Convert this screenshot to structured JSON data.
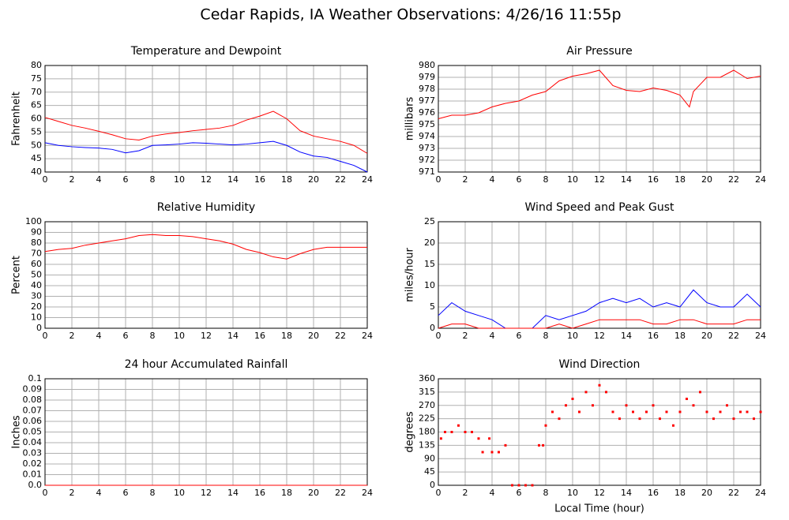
{
  "title": "Cedar Rapids, IA Weather Observations: 4/26/16 11:55p",
  "chart_data": [
    {
      "type": "line",
      "title": "Temperature and Dewpoint",
      "ylabel": "Fahrenheit",
      "x": [
        0,
        1,
        2,
        3,
        4,
        5,
        6,
        7,
        8,
        9,
        10,
        11,
        12,
        13,
        14,
        15,
        16,
        17,
        18,
        19,
        20,
        21,
        22,
        23,
        24
      ],
      "series": [
        {
          "color": "#ff0000",
          "values": [
            60.5,
            59,
            57.5,
            56.5,
            55.3,
            54,
            52.5,
            52,
            53.5,
            54.3,
            54.8,
            55.5,
            56,
            56.5,
            57.5,
            59.5,
            61,
            62.8,
            60,
            55.5,
            53.5,
            52.5,
            51.5,
            50,
            47
          ]
        },
        {
          "color": "#0000ff",
          "values": [
            51,
            50,
            49.5,
            49.2,
            49,
            48.5,
            47.2,
            48,
            50,
            50.2,
            50.5,
            51,
            50.8,
            50.5,
            50.2,
            50.5,
            51,
            51.5,
            50,
            47.5,
            46,
            45.5,
            44,
            42.5,
            40
          ]
        }
      ],
      "xlim": [
        0,
        24
      ],
      "xticks": [
        0,
        2,
        4,
        6,
        8,
        10,
        12,
        14,
        16,
        18,
        20,
        22,
        24
      ],
      "ylim": [
        40,
        80
      ],
      "yticks": [
        40,
        45,
        50,
        55,
        60,
        65,
        70,
        75,
        80
      ],
      "grid": true
    },
    {
      "type": "line",
      "title": "Air Pressure",
      "ylabel": "millibars",
      "x": [
        0,
        1,
        2,
        3,
        4,
        5,
        6,
        7,
        8,
        9,
        10,
        11,
        12,
        13,
        14,
        15,
        16,
        17,
        18,
        18.7,
        19,
        20,
        21,
        22,
        23,
        24
      ],
      "series": [
        {
          "color": "#ff0000",
          "values": [
            975.5,
            975.8,
            975.8,
            976,
            976.5,
            976.8,
            977,
            977.5,
            977.8,
            978.7,
            979.1,
            979.3,
            979.6,
            978.3,
            977.9,
            977.8,
            978.1,
            977.9,
            977.5,
            976.5,
            977.8,
            979,
            979,
            979.6,
            978.9,
            979.1
          ]
        }
      ],
      "xlim": [
        0,
        24
      ],
      "xticks": [
        0,
        2,
        4,
        6,
        8,
        10,
        12,
        14,
        16,
        18,
        20,
        22,
        24
      ],
      "ylim": [
        971,
        980
      ],
      "yticks": [
        971,
        972,
        973,
        974,
        975,
        976,
        977,
        978,
        979,
        980
      ],
      "grid": true
    },
    {
      "type": "line",
      "title": "Relative Humidity",
      "ylabel": "Percent",
      "x": [
        0,
        1,
        2,
        3,
        4,
        5,
        6,
        7,
        8,
        9,
        10,
        11,
        12,
        13,
        14,
        15,
        16,
        17,
        18,
        19,
        20,
        21,
        22,
        23,
        24
      ],
      "series": [
        {
          "color": "#ff0000",
          "values": [
            72,
            74,
            75,
            78,
            80,
            82,
            84,
            87,
            88,
            87,
            87,
            86,
            84,
            82,
            79,
            74,
            71,
            67,
            65,
            70,
            74,
            76,
            76,
            76,
            76
          ]
        }
      ],
      "xlim": [
        0,
        24
      ],
      "xticks": [
        0,
        2,
        4,
        6,
        8,
        10,
        12,
        14,
        16,
        18,
        20,
        22,
        24
      ],
      "ylim": [
        0,
        100
      ],
      "yticks": [
        0,
        10,
        20,
        30,
        40,
        50,
        60,
        70,
        80,
        90,
        100
      ],
      "grid": true
    },
    {
      "type": "line",
      "title": "Wind Speed and Peak Gust",
      "ylabel": "miles/hour",
      "x": [
        0,
        1,
        2,
        3,
        4,
        5,
        6,
        7,
        8,
        9,
        10,
        11,
        12,
        13,
        14,
        15,
        16,
        17,
        18,
        19,
        20,
        21,
        22,
        23,
        24
      ],
      "series": [
        {
          "color": "#0000ff",
          "values": [
            3,
            6,
            4,
            3,
            2,
            0,
            0,
            0,
            3,
            2,
            3,
            4,
            6,
            7,
            6,
            7,
            5,
            6,
            5,
            9,
            6,
            5,
            5,
            8,
            5
          ]
        },
        {
          "color": "#ff0000",
          "values": [
            0,
            1,
            1,
            0,
            0,
            0,
            0,
            0,
            0,
            1,
            0,
            1,
            2,
            2,
            2,
            2,
            1,
            1,
            2,
            2,
            1,
            1,
            1,
            2,
            2
          ]
        }
      ],
      "xlim": [
        0,
        24
      ],
      "xticks": [
        0,
        2,
        4,
        6,
        8,
        10,
        12,
        14,
        16,
        18,
        20,
        22,
        24
      ],
      "ylim": [
        0,
        25
      ],
      "yticks": [
        0,
        5,
        10,
        15,
        20,
        25
      ],
      "grid": true
    },
    {
      "type": "line",
      "title": "24 hour Accumulated Rainfall",
      "ylabel": "Inches",
      "x": [
        0,
        24
      ],
      "series": [
        {
          "color": "#ff0000",
          "values": [
            0,
            0
          ]
        }
      ],
      "xlim": [
        0,
        24
      ],
      "xticks": [
        0,
        2,
        4,
        6,
        8,
        10,
        12,
        14,
        16,
        18,
        20,
        22,
        24
      ],
      "ylim": [
        0,
        0.1
      ],
      "yticks": [
        {
          "value": 0,
          "label": "0.0"
        },
        0.01,
        0.02,
        0.03,
        0.04,
        0.05,
        0.06,
        0.07,
        0.08,
        0.09,
        0.1
      ],
      "grid": true
    },
    {
      "type": "scatter",
      "title": "Wind Direction",
      "ylabel": "degrees",
      "xlabel": "Local Time (hour)",
      "color": "#ff0000",
      "x": [
        0.2,
        0.5,
        1,
        1.5,
        2,
        2.5,
        3,
        3.3,
        3.8,
        4,
        4.5,
        5,
        5.5,
        6,
        6.5,
        7,
        7.5,
        7.8,
        8,
        8.5,
        9,
        9.5,
        10,
        10.5,
        11,
        11.5,
        12,
        12.5,
        13,
        13.5,
        14,
        14.5,
        15,
        15.5,
        16,
        16.5,
        17,
        17.5,
        18,
        18.5,
        19,
        19.5,
        20,
        20.5,
        21,
        21.5,
        22,
        22.5,
        23,
        23.5,
        24
      ],
      "values": [
        158,
        180,
        180,
        202,
        180,
        180,
        158,
        112,
        158,
        112,
        112,
        135,
        0,
        0,
        0,
        0,
        135,
        135,
        202,
        248,
        225,
        270,
        292,
        248,
        315,
        270,
        338,
        315,
        248,
        225,
        270,
        248,
        225,
        248,
        270,
        225,
        248,
        202,
        248,
        292,
        270,
        315,
        248,
        225,
        248,
        270,
        225,
        248,
        248,
        225,
        248
      ],
      "xlim": [
        0,
        24
      ],
      "xticks": [
        0,
        2,
        4,
        6,
        8,
        10,
        12,
        14,
        16,
        18,
        20,
        22,
        24
      ],
      "ylim": [
        0,
        360
      ],
      "yticks": [
        0,
        45,
        90,
        135,
        180,
        225,
        270,
        315,
        360
      ],
      "grid": true
    }
  ]
}
